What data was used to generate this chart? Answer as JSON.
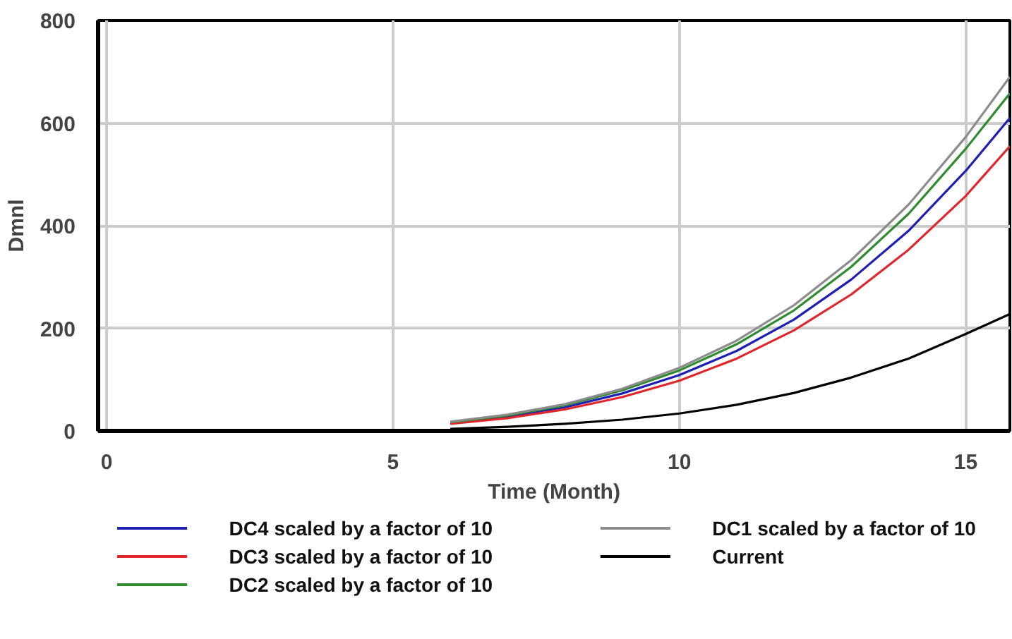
{
  "chart_data": {
    "type": "line",
    "xlabel": "Time (Month)",
    "ylabel": "Dmnl",
    "x": [
      6,
      7,
      8,
      9,
      10,
      11,
      12,
      13,
      14,
      15,
      15.77
    ],
    "series": [
      {
        "name": "DC4 scaled by a factor of 10",
        "color": "#1f1fb4",
        "values": [
          16,
          28,
          46,
          73,
          109,
          156,
          217,
          295,
          390,
          507,
          610
        ]
      },
      {
        "name": "DC3 scaled by a factor of 10",
        "color": "#e0262a",
        "values": [
          14,
          25,
          42,
          66,
          98,
          141,
          196,
          266,
          353,
          458,
          555
        ]
      },
      {
        "name": "DC2 scaled by a factor of 10",
        "color": "#2e8b2e",
        "values": [
          17,
          30,
          50,
          79,
          118,
          169,
          235,
          320,
          423,
          550,
          658
        ]
      },
      {
        "name": "DC1 scaled by a factor of 10",
        "color": "#8c8c8c",
        "values": [
          18,
          32,
          52,
          82,
          123,
          176,
          245,
          333,
          441,
          573,
          690
        ]
      },
      {
        "name": "Current",
        "color": "#000000",
        "values": [
          4,
          8,
          14,
          22,
          34,
          51,
          74,
          104,
          141,
          189,
          228
        ]
      }
    ],
    "xlim": [
      -0.15,
      15.77
    ],
    "ylim": [
      0,
      800
    ],
    "xticks": [
      0,
      5,
      10,
      15
    ],
    "yticks": [
      0,
      200,
      400,
      600,
      800
    ],
    "grid": true,
    "legend": "bottom",
    "line_style": "solid"
  }
}
